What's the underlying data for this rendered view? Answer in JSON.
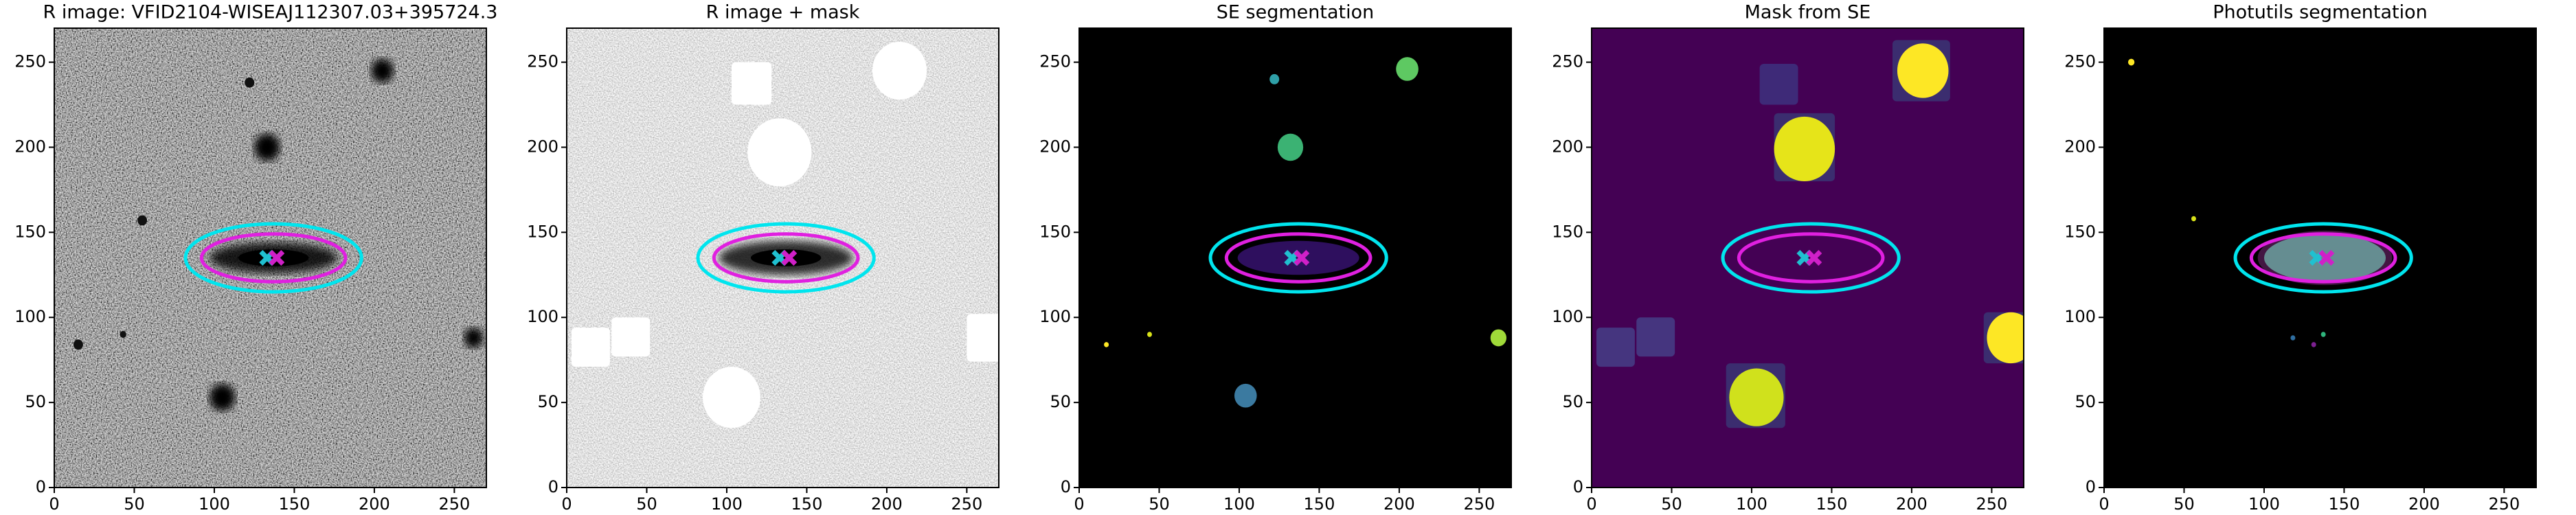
{
  "chart_data": [
    {
      "type": "image",
      "title": "R image: VFID2104-WISEAJ112307.03+395724.3",
      "xlim": [
        0,
        270
      ],
      "ylim": [
        0,
        270
      ],
      "xticks": [
        0,
        50,
        100,
        150,
        200,
        250
      ],
      "yticks": [
        0,
        50,
        100,
        150,
        200,
        250
      ],
      "ellipses": [
        {
          "color": "#00e5ee",
          "cx": 137,
          "cy": 135,
          "rx": 55,
          "ry": 20
        },
        {
          "color": "#e020e0",
          "cx": 137,
          "cy": 135,
          "rx": 45,
          "ry": 14
        }
      ],
      "markers": [
        {
          "color": "#20c0d0",
          "x": 133,
          "y": 135
        },
        {
          "color": "#d020c8",
          "x": 139,
          "y": 135
        }
      ]
    },
    {
      "type": "image",
      "title": "R image + mask",
      "xlim": [
        0,
        270
      ],
      "ylim": [
        0,
        270
      ],
      "xticks": [
        0,
        50,
        100,
        150,
        200,
        250
      ],
      "yticks": [
        0,
        50,
        100,
        150,
        200,
        250
      ],
      "ellipses": [
        {
          "color": "#00e5ee",
          "cx": 137,
          "cy": 135,
          "rx": 55,
          "ry": 20
        },
        {
          "color": "#e020e0",
          "cx": 137,
          "cy": 135,
          "rx": 45,
          "ry": 14
        }
      ],
      "markers": [
        {
          "color": "#20c0d0",
          "x": 133,
          "y": 135
        },
        {
          "color": "#d020c8",
          "x": 139,
          "y": 135
        }
      ]
    },
    {
      "type": "image",
      "title": "SE segmentation",
      "xlim": [
        0,
        270
      ],
      "ylim": [
        0,
        270
      ],
      "xticks": [
        0,
        50,
        100,
        150,
        200,
        250
      ],
      "yticks": [
        0,
        50,
        100,
        150,
        200,
        250
      ],
      "ellipses": [
        {
          "color": "#00e5ee",
          "cx": 137,
          "cy": 135,
          "rx": 55,
          "ry": 20
        },
        {
          "color": "#e020e0",
          "cx": 137,
          "cy": 135,
          "rx": 45,
          "ry": 14
        }
      ],
      "markers": [
        {
          "color": "#20c0d0",
          "x": 133,
          "y": 135
        },
        {
          "color": "#d020c8",
          "x": 139,
          "y": 135
        }
      ]
    },
    {
      "type": "image",
      "title": "Mask from SE",
      "xlim": [
        0,
        270
      ],
      "ylim": [
        0,
        270
      ],
      "xticks": [
        0,
        50,
        100,
        150,
        200,
        250
      ],
      "yticks": [
        0,
        50,
        100,
        150,
        200,
        250
      ],
      "ellipses": [
        {
          "color": "#00e5ee",
          "cx": 137,
          "cy": 135,
          "rx": 55,
          "ry": 20
        },
        {
          "color": "#e020e0",
          "cx": 137,
          "cy": 135,
          "rx": 45,
          "ry": 14
        }
      ],
      "markers": [
        {
          "color": "#20c0d0",
          "x": 133,
          "y": 135
        },
        {
          "color": "#d020c8",
          "x": 139,
          "y": 135
        }
      ]
    },
    {
      "type": "image",
      "title": "Photutils segmentation",
      "xlim": [
        0,
        270
      ],
      "ylim": [
        0,
        270
      ],
      "xticks": [
        0,
        50,
        100,
        150,
        200,
        250
      ],
      "yticks": [
        0,
        50,
        100,
        150,
        200,
        250
      ],
      "ellipses": [
        {
          "color": "#00e5ee",
          "cx": 137,
          "cy": 135,
          "rx": 55,
          "ry": 20
        },
        {
          "color": "#e020e0",
          "cx": 137,
          "cy": 135,
          "rx": 45,
          "ry": 14
        }
      ],
      "markers": [
        {
          "color": "#20c0d0",
          "x": 133,
          "y": 135
        },
        {
          "color": "#d020c8",
          "x": 139,
          "y": 135
        }
      ]
    }
  ]
}
